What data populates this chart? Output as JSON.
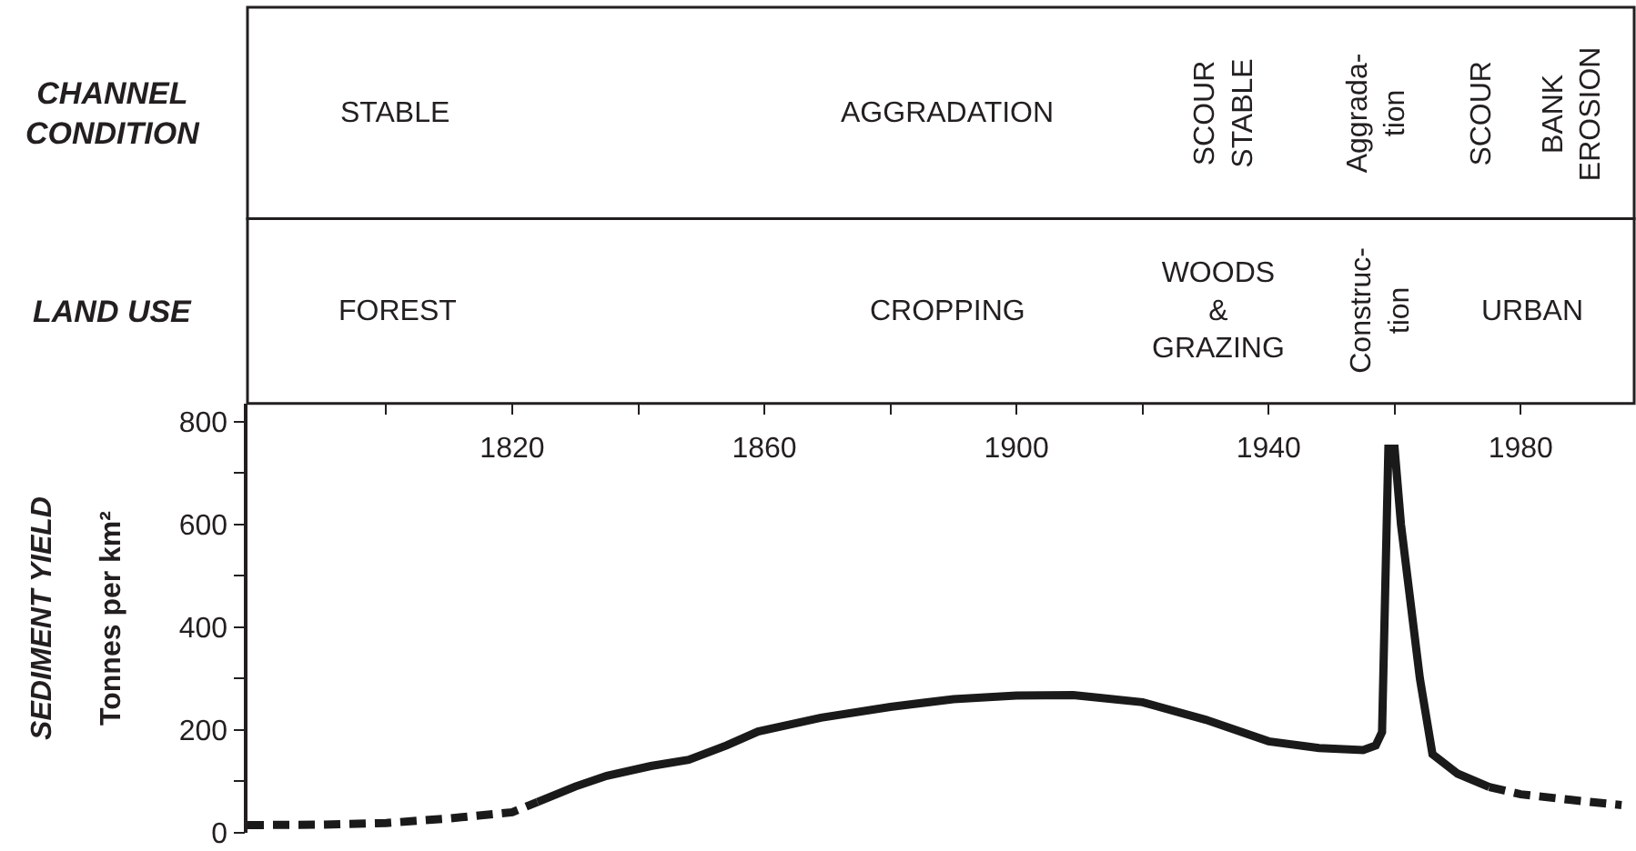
{
  "chart_data": {
    "type": "line",
    "title": "SEDIMENT YIELD",
    "ylabel": "Tonnes per km²",
    "xlim": [
      1778,
      1998
    ],
    "ylim": [
      0,
      835
    ],
    "xticks": [
      {
        "value": 1800,
        "label": null
      },
      1820,
      {
        "value": 1840,
        "label": null
      },
      1860,
      {
        "value": 1880,
        "label": null
      },
      1900,
      {
        "value": 1920,
        "label": null
      },
      1940,
      {
        "value": 1960,
        "label": null
      },
      1980
    ],
    "yticks": [
      0,
      {
        "value": 100,
        "label": null
      },
      200,
      {
        "value": 300,
        "label": null
      },
      400,
      {
        "value": 500,
        "label": null
      },
      600,
      {
        "value": 700,
        "label": null
      },
      800
    ],
    "annotations": [
      "CHANNEL\nCONDITION",
      "STABLE",
      "AGGRADATION",
      "SCOUR\nSTABLE",
      "Aggrada-\ntion",
      "SCOUR",
      "BANK\nEROSION",
      "LAND USE",
      "FOREST",
      "CROPPING",
      "WOODS\n&\nGRAZING",
      "Construc-\ntion",
      "URBAN"
    ],
    "series": [
      {
        "color": "#1a1a1a",
        "line_style": "dashed",
        "x": [
          1778,
          1790,
          1800,
          1810,
          1820,
          1824
        ],
        "values": [
          15,
          16,
          19,
          28,
          40,
          60
        ]
      },
      {
        "color": "#1a1a1a",
        "line_style": "solid",
        "x": [
          1824,
          1830,
          1835,
          1842,
          1848,
          1854,
          1859,
          1869,
          1880,
          1890,
          1900,
          1909,
          1920,
          1930,
          1940,
          1948,
          1955,
          1957,
          1958,
          1959,
          1960,
          1961,
          1964,
          1966,
          1970,
          1975
        ],
        "values": [
          60,
          90,
          111,
          130,
          142,
          170,
          197,
          224,
          245,
          260,
          267,
          268,
          254,
          220,
          178,
          165,
          161,
          170,
          196,
          747,
          747,
          600,
          300,
          153,
          115,
          89
        ]
      },
      {
        "color": "#1a1a1a",
        "line_style": "dashed",
        "x": [
          1975,
          1980,
          1988,
          1996
        ],
        "values": [
          89,
          75,
          64,
          54
        ]
      }
    ]
  }
}
